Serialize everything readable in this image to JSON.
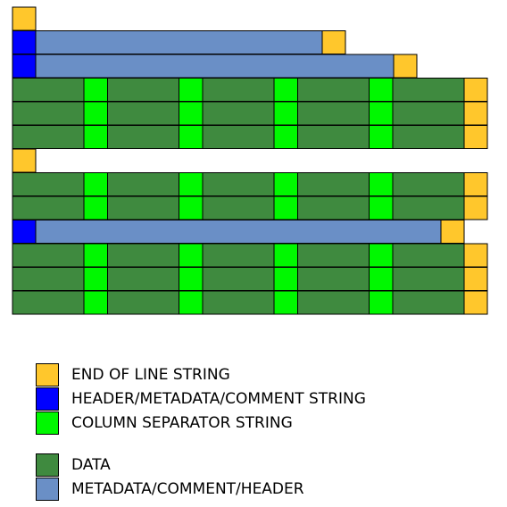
{
  "colors": {
    "end_of_line": "#ffc72c",
    "header_string": "#0000ff",
    "column_separator": "#00f800",
    "data": "#3f8a3f",
    "metadata_block": "#6a8fc6",
    "stroke": "#000000"
  },
  "rows": [
    {
      "kind": "eol-only"
    },
    {
      "kind": "header",
      "length": "short"
    },
    {
      "kind": "header",
      "length": "medium"
    },
    {
      "kind": "data",
      "columns": 5
    },
    {
      "kind": "data",
      "columns": 5
    },
    {
      "kind": "data",
      "columns": 5
    },
    {
      "kind": "eol-only"
    },
    {
      "kind": "data",
      "columns": 5
    },
    {
      "kind": "data",
      "columns": 5
    },
    {
      "kind": "header",
      "length": "long"
    },
    {
      "kind": "data",
      "columns": 5
    },
    {
      "kind": "data",
      "columns": 5
    },
    {
      "kind": "data",
      "columns": 5,
      "eol": false
    }
  ],
  "legend": [
    {
      "key": "eol",
      "label": "END OF LINE STRING",
      "color": "#ffc72c"
    },
    {
      "key": "header",
      "label": "HEADER/METADATA/COMMENT STRING",
      "color": "#0000ff"
    },
    {
      "key": "separator",
      "label": "COLUMN SEPARATOR STRING",
      "color": "#00f800"
    },
    {
      "key": "data",
      "label": "DATA",
      "color": "#3f8a3f"
    },
    {
      "key": "metadata",
      "label": "METADATA/COMMENT/HEADER",
      "color": "#6a8fc6"
    }
  ]
}
